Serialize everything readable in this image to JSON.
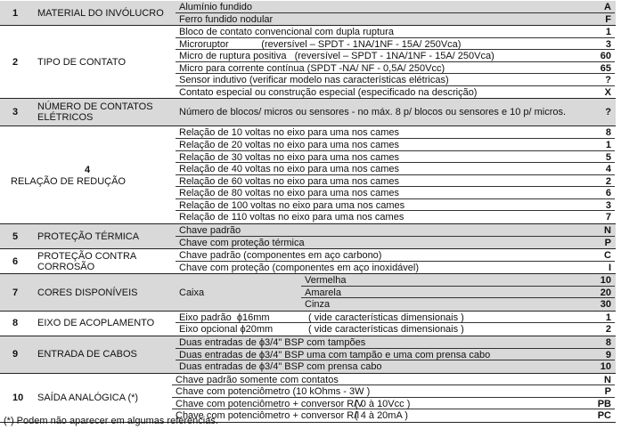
{
  "sections": [
    {
      "num": "1",
      "label": "MATERIAL DO INVÓLUCRO",
      "shaded": true,
      "rows": [
        {
          "desc": "Alumínio fundido",
          "code": "A"
        },
        {
          "desc": "Ferro fundido nodular",
          "code": "F"
        }
      ]
    },
    {
      "num": "2",
      "label": "TIPO DE CONTATO",
      "shaded": false,
      "rows": [
        {
          "desc": "Bloco de contato convencional com dupla ruptura",
          "code": "1"
        },
        {
          "desc": "Microruptor            (reversível – SPDT - 1NA/1NF - 15A/ 250Vca)",
          "code": "3"
        },
        {
          "desc": "Micro de ruptura positiva   (reversível – SPDT - 1NA/1NF - 15A/ 250Vca)",
          "code": "60"
        },
        {
          "desc": "Micro para corrente contínua (SPDT -NA/ NF - 0,5A/ 250Vcc)",
          "code": "65"
        },
        {
          "desc": "Sensor indutivo (verificar modelo nas características elétricas)",
          "code": "?"
        },
        {
          "desc": "Contato especial ou construção especial (especificado na descrição)",
          "code": "X"
        }
      ]
    },
    {
      "num": "3",
      "label": "NÚMERO DE CONTATOS ELÉTRICOS",
      "shaded": true,
      "tall": true,
      "rows": [
        {
          "desc": "Número de blocos/ micros ou sensores - no máx. 8 p/ blocos ou sensores e 10 p/ micros.",
          "code": "?"
        }
      ]
    },
    {
      "num": "4",
      "label": "RELAÇÃO DE REDUÇÃO",
      "shaded": false,
      "stacked": true,
      "rows": [
        {
          "desc": "Relação de 10 voltas no eixo para uma nos cames",
          "code": "8"
        },
        {
          "desc": "Relação de 20 voltas no eixo para uma nos cames",
          "code": "1"
        },
        {
          "desc": "Relação de 30 voltas no eixo para uma nos cames",
          "code": "5"
        },
        {
          "desc": "Relação de 40 voltas no eixo para uma nos cames",
          "code": "4"
        },
        {
          "desc": "Relação de 60 voltas no eixo para uma nos cames",
          "code": "2"
        },
        {
          "desc": "Relação de 80 voltas no eixo para uma nos cames",
          "code": "6"
        },
        {
          "desc": "Relação de 100 voltas no eixo para uma nos cames",
          "code": "3"
        },
        {
          "desc": "Relação de 110 voltas no eixo para uma nos cames",
          "code": "7"
        }
      ]
    },
    {
      "num": "5",
      "label": "PROTEÇÃO TÉRMICA",
      "shaded": true,
      "rows": [
        {
          "desc": "Chave padrão",
          "code": "N"
        },
        {
          "desc": "Chave com proteção térmica",
          "code": "P"
        }
      ]
    },
    {
      "num": "6",
      "label": "PROTEÇÃO CONTRA CORROSÃO",
      "shaded": false,
      "rows": [
        {
          "desc": "Chave padrão (componentes em aço carbono)",
          "code": "C"
        },
        {
          "desc": "Chave com proteção (componentes em aço inoxidável)",
          "code": "I"
        }
      ]
    },
    {
      "num": "7",
      "label": "CORES DISPONÍVEIS",
      "shaded": true,
      "sub": "Caixa",
      "rows": [
        {
          "desc": "Vermelha",
          "code": "10"
        },
        {
          "desc": "Amarela",
          "code": "20"
        },
        {
          "desc": "Cinza",
          "code": "30"
        }
      ]
    },
    {
      "num": "8",
      "label": "EIXO DE ACOPLAMENTO",
      "shaded": false,
      "rows": [
        {
          "desc": "Eixo padrão  ϕ16mm",
          "desc2": "( vide características dimensionais )",
          "code": "1"
        },
        {
          "desc": "Eixo opcional ϕ20mm",
          "desc2": "( vide características dimensionais )",
          "code": "2"
        }
      ]
    },
    {
      "num": "9",
      "label": "ENTRADA DE CABOS",
      "shaded": true,
      "rows": [
        {
          "desc": "Duas entradas de ϕ3/4\" BSP com tampões",
          "code": "8"
        },
        {
          "desc": "Duas entradas de ϕ3/4\" BSP uma com tampão e uma com prensa cabo",
          "code": "9"
        },
        {
          "desc": "Duas entradas de ϕ3/4\" BSP com prensa cabo",
          "code": "10"
        }
      ]
    },
    {
      "num": "10",
      "label": "SAÍDA ANALÓGICA (*)",
      "shaded": false,
      "rows": [
        {
          "desc": "Chave padrão somente com contatos",
          "code": "N"
        },
        {
          "desc": "Chave com potenciômetro (10 kOhms - 3W )",
          "code": "P"
        },
        {
          "desc": "Chave com potenciômetro + conversor R/V",
          "desc3": "( 0 à 10Vcc )",
          "code": "PB"
        },
        {
          "desc": "Chave com potenciômetro + conversor R/I",
          "desc3": "( 4 à 20mA )",
          "code": "PC"
        }
      ]
    }
  ],
  "footnote": "(*) Podem não aparecer em algumas referencias."
}
